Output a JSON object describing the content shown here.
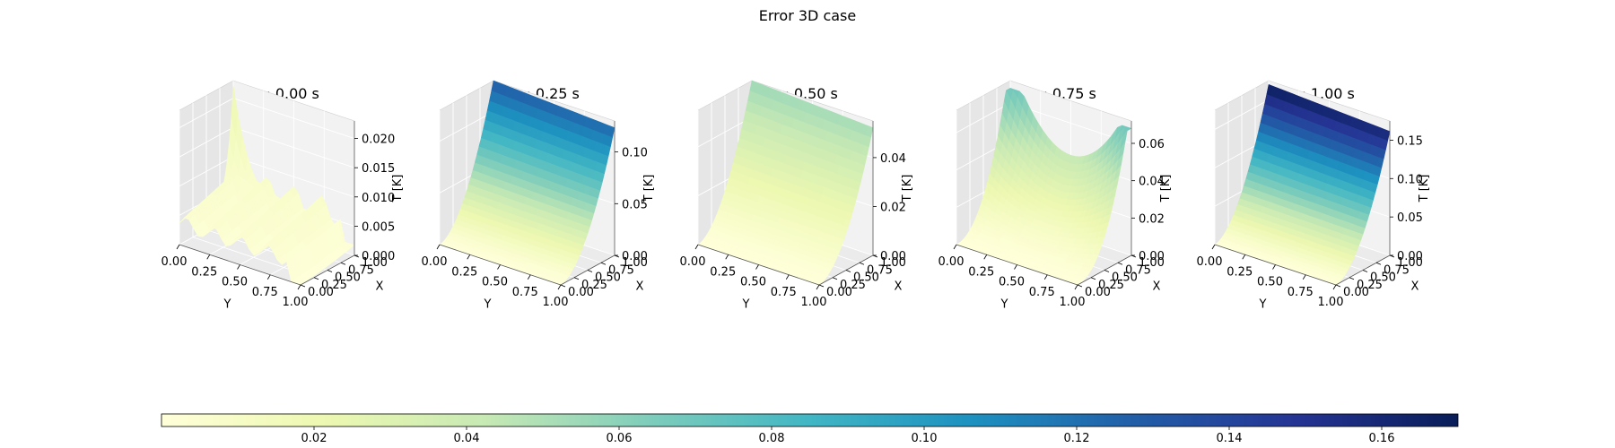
{
  "figure": {
    "suptitle": "Error 3D case"
  },
  "colormap": {
    "name": "YlGnBu",
    "stops": [
      "#ffffd9",
      "#edf8b1",
      "#c7e9b4",
      "#7fcdbb",
      "#41b6c4",
      "#1d91c0",
      "#225ea8",
      "#253494",
      "#081d58"
    ]
  },
  "colorbar": {
    "min": 0.0,
    "max": 0.17,
    "ticks": [
      "0.02",
      "0.04",
      "0.06",
      "0.08",
      "0.10",
      "0.12",
      "0.14",
      "0.16"
    ]
  },
  "chart_data": [
    {
      "type": "surface",
      "title": "Time = 0.00 s",
      "xlabel": "Y",
      "ylabel": "X",
      "zlabel": "T [K]",
      "y_ticks": [
        "0.00",
        "0.25",
        "0.50",
        "0.75",
        "1.00"
      ],
      "x_ticks": [
        "0.00",
        "0.25",
        "0.50",
        "0.75",
        "1.00"
      ],
      "z_ticks": [
        "0.000",
        "0.005",
        "0.010",
        "0.015",
        "0.020"
      ],
      "zlim": [
        0,
        0.023
      ],
      "shape": "initial",
      "peak": 0.022
    },
    {
      "type": "surface",
      "title": "Time = 0.25 s",
      "xlabel": "Y",
      "ylabel": "X",
      "zlabel": "T [K]",
      "y_ticks": [
        "0.00",
        "0.25",
        "0.50",
        "0.75",
        "1.00"
      ],
      "x_ticks": [
        "0.00",
        "0.25",
        "0.50",
        "0.75",
        "1.00"
      ],
      "z_ticks": [
        "0.00",
        "0.05",
        "0.10"
      ],
      "zlim": [
        0,
        0.13
      ],
      "shape": "ramp",
      "peak": 0.13
    },
    {
      "type": "surface",
      "title": "Time = 0.50 s",
      "xlabel": "Y",
      "ylabel": "X",
      "zlabel": "T [K]",
      "y_ticks": [
        "0.00",
        "0.25",
        "0.50",
        "0.75",
        "1.00"
      ],
      "x_ticks": [
        "0.00",
        "0.25",
        "0.50",
        "0.75",
        "1.00"
      ],
      "z_ticks": [
        "0.00",
        "0.02",
        "0.04"
      ],
      "zlim": [
        0,
        0.055
      ],
      "shape": "ramp",
      "peak": 0.055
    },
    {
      "type": "surface",
      "title": "Time = 0.75 s",
      "xlabel": "Y",
      "ylabel": "X",
      "zlabel": "T [K]",
      "y_ticks": [
        "0.00",
        "0.25",
        "0.50",
        "0.75",
        "1.00"
      ],
      "x_ticks": [
        "0.00",
        "0.25",
        "0.50",
        "0.75",
        "1.00"
      ],
      "z_ticks": [
        "0.00",
        "0.02",
        "0.04",
        "0.06"
      ],
      "zlim": [
        0,
        0.072
      ],
      "shape": "bowl",
      "peak": 0.068
    },
    {
      "type": "surface",
      "title": "Time = 1.00 s",
      "xlabel": "Y",
      "ylabel": "X",
      "zlabel": "T [K]",
      "y_ticks": [
        "0.00",
        "0.25",
        "0.50",
        "0.75",
        "1.00"
      ],
      "x_ticks": [
        "0.00",
        "0.25",
        "0.50",
        "0.75",
        "1.00"
      ],
      "z_ticks": [
        "0.00",
        "0.05",
        "0.10",
        "0.15"
      ],
      "zlim": [
        0,
        0.175
      ],
      "shape": "ramp",
      "peak": 0.17
    }
  ]
}
